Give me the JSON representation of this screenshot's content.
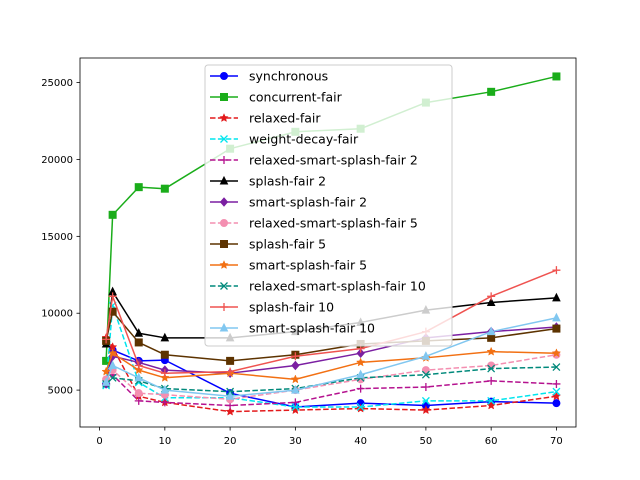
{
  "chart_data": {
    "type": "line",
    "title": "",
    "xlabel": "",
    "ylabel": "",
    "xlim": [
      -3,
      73
    ],
    "ylim": [
      2600,
      26600
    ],
    "xticks": [
      0,
      10,
      20,
      30,
      40,
      50,
      60,
      70
    ],
    "yticks": [
      5000,
      10000,
      15000,
      20000,
      25000
    ],
    "legend_position": "upper-center",
    "series": [
      {
        "name": "synchronous",
        "color": "#0000ff",
        "marker": "o",
        "linestyle": "solid",
        "points": [
          [
            1,
            5400
          ],
          [
            2,
            7600
          ],
          [
            6,
            6900
          ],
          [
            10,
            6950
          ],
          [
            20,
            4800
          ],
          [
            30,
            3900
          ],
          [
            40,
            4150
          ],
          [
            50,
            4000
          ],
          [
            60,
            4250
          ],
          [
            70,
            4150
          ]
        ]
      },
      {
        "name": "concurrent-fair",
        "color": "#1aad1a",
        "marker": "s",
        "linestyle": "solid",
        "points": [
          [
            1,
            6900
          ],
          [
            2,
            16400
          ],
          [
            6,
            18200
          ],
          [
            10,
            18100
          ],
          [
            20,
            20700
          ],
          [
            30,
            21800
          ],
          [
            40,
            22000
          ],
          [
            50,
            23700
          ],
          [
            60,
            24400
          ],
          [
            70,
            25400
          ]
        ]
      },
      {
        "name": "relaxed-fair",
        "color": "#e31a1c",
        "marker": "*",
        "linestyle": "dashed",
        "points": [
          [
            1,
            8400
          ],
          [
            2,
            7800
          ],
          [
            6,
            4600
          ],
          [
            10,
            4200
          ],
          [
            20,
            3600
          ],
          [
            30,
            3700
          ],
          [
            40,
            3800
          ],
          [
            50,
            3700
          ],
          [
            60,
            4000
          ],
          [
            70,
            4600
          ]
        ]
      },
      {
        "name": "weight-decay-fair",
        "color": "#00e5ee",
        "marker": "x",
        "linestyle": "dashed",
        "points": [
          [
            1,
            5300
          ],
          [
            2,
            10500
          ],
          [
            6,
            5500
          ],
          [
            10,
            4500
          ],
          [
            20,
            4500
          ],
          [
            30,
            3900
          ],
          [
            40,
            3900
          ],
          [
            50,
            4300
          ],
          [
            60,
            4300
          ],
          [
            70,
            4900
          ]
        ]
      },
      {
        "name": "relaxed-smart-splash-fair 2",
        "color": "#b5128f",
        "marker": "+",
        "linestyle": "dashed",
        "points": [
          [
            1,
            5400
          ],
          [
            2,
            6000
          ],
          [
            6,
            4300
          ],
          [
            10,
            4200
          ],
          [
            20,
            4000
          ],
          [
            30,
            4200
          ],
          [
            40,
            5100
          ],
          [
            50,
            5200
          ],
          [
            60,
            5600
          ],
          [
            70,
            5400
          ]
        ]
      },
      {
        "name": "splash-fair 2",
        "color": "#000000",
        "marker": "^",
        "linestyle": "solid",
        "points": [
          [
            1,
            8000
          ],
          [
            2,
            11400
          ],
          [
            6,
            8700
          ],
          [
            10,
            8400
          ],
          [
            20,
            8400
          ],
          [
            30,
            8800
          ],
          [
            40,
            9400
          ],
          [
            50,
            10200
          ],
          [
            60,
            10700
          ],
          [
            70,
            11000
          ]
        ]
      },
      {
        "name": "smart-splash-fair 2",
        "color": "#7b1fa2",
        "marker": "D",
        "linestyle": "solid",
        "points": [
          [
            1,
            5400
          ],
          [
            2,
            7200
          ],
          [
            6,
            6800
          ],
          [
            10,
            6300
          ],
          [
            20,
            6100
          ],
          [
            30,
            6600
          ],
          [
            40,
            7400
          ],
          [
            50,
            8400
          ],
          [
            60,
            8800
          ],
          [
            70,
            9100
          ]
        ]
      },
      {
        "name": "relaxed-smart-splash-fair 5",
        "color": "#f48fb1",
        "marker": "o",
        "linestyle": "dashed",
        "points": [
          [
            1,
            5700
          ],
          [
            2,
            6300
          ],
          [
            6,
            4800
          ],
          [
            10,
            4700
          ],
          [
            20,
            4400
          ],
          [
            30,
            5000
          ],
          [
            40,
            5700
          ],
          [
            50,
            6300
          ],
          [
            60,
            6600
          ],
          [
            70,
            7300
          ]
        ]
      },
      {
        "name": "splash-fair 5",
        "color": "#5d3300",
        "marker": "s",
        "linestyle": "solid",
        "points": [
          [
            1,
            8200
          ],
          [
            2,
            10100
          ],
          [
            6,
            8100
          ],
          [
            10,
            7300
          ],
          [
            20,
            6900
          ],
          [
            30,
            7300
          ],
          [
            40,
            8000
          ],
          [
            50,
            8200
          ],
          [
            60,
            8400
          ],
          [
            70,
            9000
          ]
        ]
      },
      {
        "name": "smart-splash-fair 5",
        "color": "#f27013",
        "marker": "*",
        "linestyle": "solid",
        "points": [
          [
            1,
            6200
          ],
          [
            2,
            7400
          ],
          [
            6,
            6300
          ],
          [
            10,
            5800
          ],
          [
            20,
            6100
          ],
          [
            30,
            5700
          ],
          [
            40,
            6800
          ],
          [
            50,
            7100
          ],
          [
            60,
            7500
          ],
          [
            70,
            7400
          ]
        ]
      },
      {
        "name": "relaxed-smart-splash-fair 10",
        "color": "#00897b",
        "marker": "x",
        "linestyle": "dashed",
        "points": [
          [
            1,
            5400
          ],
          [
            2,
            5800
          ],
          [
            6,
            5600
          ],
          [
            10,
            5100
          ],
          [
            20,
            4900
          ],
          [
            30,
            5100
          ],
          [
            40,
            5800
          ],
          [
            50,
            6000
          ],
          [
            60,
            6400
          ],
          [
            70,
            6500
          ]
        ]
      },
      {
        "name": "splash-fair 10",
        "color": "#ef5350",
        "marker": "+",
        "linestyle": "solid",
        "points": [
          [
            1,
            8300
          ],
          [
            2,
            11100
          ],
          [
            6,
            6600
          ],
          [
            10,
            6100
          ],
          [
            20,
            6200
          ],
          [
            30,
            7200
          ],
          [
            40,
            7700
          ],
          [
            50,
            8800
          ],
          [
            60,
            11100
          ],
          [
            70,
            12800
          ]
        ]
      },
      {
        "name": "smart-splash-fair 10",
        "color": "#81c7f0",
        "marker": "^",
        "linestyle": "solid",
        "points": [
          [
            1,
            5500
          ],
          [
            2,
            6600
          ],
          [
            6,
            5800
          ],
          [
            10,
            5000
          ],
          [
            20,
            4600
          ],
          [
            30,
            5000
          ],
          [
            40,
            6000
          ],
          [
            50,
            7200
          ],
          [
            60,
            8800
          ],
          [
            70,
            9700
          ]
        ]
      }
    ]
  }
}
